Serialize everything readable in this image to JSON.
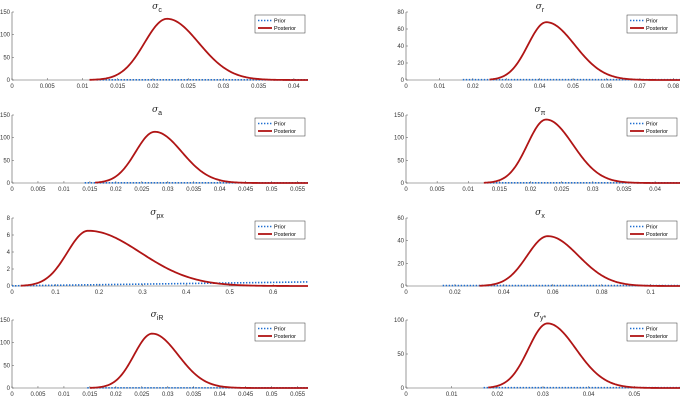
{
  "colors": {
    "prior": "#1f6fd1",
    "posterior": "#b01515",
    "axis": "#555555"
  },
  "legend": [
    "Prior",
    "Posterior"
  ],
  "chart_data": [
    {
      "type": "line",
      "title": "σ",
      "title_sub": "c",
      "xlim": [
        0,
        0.042
      ],
      "ylim": [
        0,
        150
      ],
      "xticks": [
        0,
        0.005,
        0.01,
        0.015,
        0.02,
        0.025,
        0.03,
        0.035,
        0.04
      ],
      "xtick_labels": [
        "0",
        "0.005",
        "0.01",
        "0.015",
        "0.02",
        "0.025",
        "0.03",
        "0.035",
        "0.04"
      ],
      "yticks": [
        0,
        50,
        100,
        150
      ],
      "posterior": {
        "start": 0.011,
        "peak_x": 0.022,
        "peak_y": 135,
        "sd_left": 0.0032,
        "sd_right": 0.0045
      },
      "prior": {
        "start": 0.012,
        "end": 0.042,
        "y": 0.4
      },
      "series": [
        {
          "name": "Prior"
        },
        {
          "name": "Posterior"
        }
      ],
      "legend_position": "top-right"
    },
    {
      "type": "line",
      "title": "σ",
      "title_sub": "r",
      "xlim": [
        0,
        0.082
      ],
      "ylim": [
        0,
        80
      ],
      "xticks": [
        0,
        0.01,
        0.02,
        0.03,
        0.04,
        0.05,
        0.06,
        0.07,
        0.08
      ],
      "xtick_labels": [
        "0",
        "0.01",
        "0.02",
        "0.03",
        "0.04",
        "0.05",
        "0.06",
        "0.07",
        "0.08"
      ],
      "yticks": [
        0,
        20,
        40,
        60,
        80
      ],
      "posterior": {
        "start": 0.025,
        "peak_x": 0.042,
        "peak_y": 68,
        "sd_left": 0.0055,
        "sd_right": 0.0085
      },
      "prior": {
        "start": 0.017,
        "end": 0.082,
        "y": 0.4
      },
      "series": [
        {
          "name": "Prior"
        },
        {
          "name": "Posterior"
        }
      ],
      "legend_position": "top-right"
    },
    {
      "type": "line",
      "title": "σ",
      "title_sub": "a",
      "xlim": [
        0,
        0.057
      ],
      "ylim": [
        0,
        150
      ],
      "xticks": [
        0,
        0.005,
        0.01,
        0.015,
        0.02,
        0.025,
        0.03,
        0.035,
        0.04,
        0.045,
        0.05,
        0.055
      ],
      "xtick_labels": [
        "0",
        "0.005",
        "0.01",
        "0.015",
        "0.02",
        "0.025",
        "0.03",
        "0.035",
        "0.04",
        "0.045",
        "0.05",
        "0.055"
      ],
      "yticks": [
        0,
        50,
        100,
        150
      ],
      "posterior": {
        "start": 0.016,
        "peak_x": 0.0275,
        "peak_y": 113,
        "sd_left": 0.0037,
        "sd_right": 0.0052
      },
      "prior": {
        "start": 0.014,
        "end": 0.057,
        "y": 0.4
      },
      "series": [
        {
          "name": "Prior"
        },
        {
          "name": "Posterior"
        }
      ],
      "legend_position": "top-right"
    },
    {
      "type": "line",
      "title": "σ",
      "title_sub": "π",
      "xlim": [
        0,
        0.044
      ],
      "ylim": [
        0,
        150
      ],
      "xticks": [
        0,
        0.005,
        0.01,
        0.015,
        0.02,
        0.025,
        0.03,
        0.035,
        0.04
      ],
      "xtick_labels": [
        "0",
        "0.005",
        "0.01",
        "0.015",
        "0.02",
        "0.025",
        "0.03",
        "0.035",
        "0.04"
      ],
      "yticks": [
        0,
        50,
        100,
        150
      ],
      "posterior": {
        "start": 0.0125,
        "peak_x": 0.0225,
        "peak_y": 140,
        "sd_left": 0.003,
        "sd_right": 0.0043
      },
      "prior": {
        "start": 0.013,
        "end": 0.044,
        "y": 0.4
      },
      "series": [
        {
          "name": "Prior"
        },
        {
          "name": "Posterior"
        }
      ],
      "legend_position": "top-right"
    },
    {
      "type": "line",
      "title": "σ",
      "title_sub": "px",
      "xlim": [
        0,
        0.68
      ],
      "ylim": [
        0,
        8
      ],
      "xticks": [
        0,
        0.1,
        0.2,
        0.3,
        0.4,
        0.5,
        0.6
      ],
      "xtick_labels": [
        "0",
        "0.1",
        "0.2",
        "0.3",
        "0.4",
        "0.5",
        "0.6"
      ],
      "yticks": [
        0,
        2,
        4,
        6,
        8
      ],
      "posterior": {
        "start": 0.02,
        "peak_x": 0.175,
        "peak_y": 6.5,
        "sd_left": 0.048,
        "sd_right": 0.12
      },
      "prior": {
        "start": 0.0,
        "end": 0.68,
        "y": 0.02,
        "y_end": 0.48
      },
      "series": [
        {
          "name": "Prior"
        },
        {
          "name": "Posterior"
        }
      ],
      "legend_position": "top-right"
    },
    {
      "type": "line",
      "title": "σ",
      "title_sub": "x",
      "xlim": [
        0,
        0.112
      ],
      "ylim": [
        0,
        60
      ],
      "xticks": [
        0,
        0.02,
        0.04,
        0.06,
        0.08,
        0.1
      ],
      "xtick_labels": [
        "0",
        "0.02",
        "0.04",
        "0.06",
        "0.08",
        "0.1"
      ],
      "yticks": [
        0,
        20,
        40,
        60
      ],
      "posterior": {
        "start": 0.03,
        "peak_x": 0.058,
        "peak_y": 44,
        "sd_left": 0.0085,
        "sd_right": 0.0125
      },
      "prior": {
        "start": 0.015,
        "end": 0.112,
        "y": 0.4
      },
      "series": [
        {
          "name": "Prior"
        },
        {
          "name": "Posterior"
        }
      ],
      "legend_position": "top-right"
    },
    {
      "type": "line",
      "title": "σ",
      "title_sub": "iR",
      "xlim": [
        0,
        0.057
      ],
      "ylim": [
        0,
        150
      ],
      "xticks": [
        0,
        0.005,
        0.01,
        0.015,
        0.02,
        0.025,
        0.03,
        0.035,
        0.04,
        0.045,
        0.05,
        0.055
      ],
      "xtick_labels": [
        "0",
        "0.005",
        "0.01",
        "0.015",
        "0.02",
        "0.025",
        "0.03",
        "0.035",
        "0.04",
        "0.045",
        "0.05",
        "0.055"
      ],
      "yticks": [
        0,
        50,
        100,
        150
      ],
      "posterior": {
        "start": 0.015,
        "peak_x": 0.027,
        "peak_y": 120,
        "sd_left": 0.0035,
        "sd_right": 0.005
      },
      "prior": {
        "start": 0.0145,
        "end": 0.057,
        "y": 0.4
      },
      "series": [
        {
          "name": "Prior"
        },
        {
          "name": "Posterior"
        }
      ],
      "legend_position": "top-right"
    },
    {
      "type": "line",
      "title": "σ",
      "title_sub": "y*",
      "xlim": [
        0,
        0.06
      ],
      "ylim": [
        0,
        100
      ],
      "xticks": [
        0,
        0.01,
        0.02,
        0.03,
        0.04,
        0.05
      ],
      "xtick_labels": [
        "0",
        "0.01",
        "0.02",
        "0.03",
        "0.04",
        "0.05"
      ],
      "yticks": [
        0,
        50,
        100
      ],
      "posterior": {
        "start": 0.018,
        "peak_x": 0.031,
        "peak_y": 95,
        "sd_left": 0.0042,
        "sd_right": 0.0062
      },
      "prior": {
        "start": 0.017,
        "end": 0.06,
        "y": 0.4
      },
      "series": [
        {
          "name": "Prior"
        },
        {
          "name": "Posterior"
        }
      ],
      "legend_position": "top-right"
    }
  ]
}
